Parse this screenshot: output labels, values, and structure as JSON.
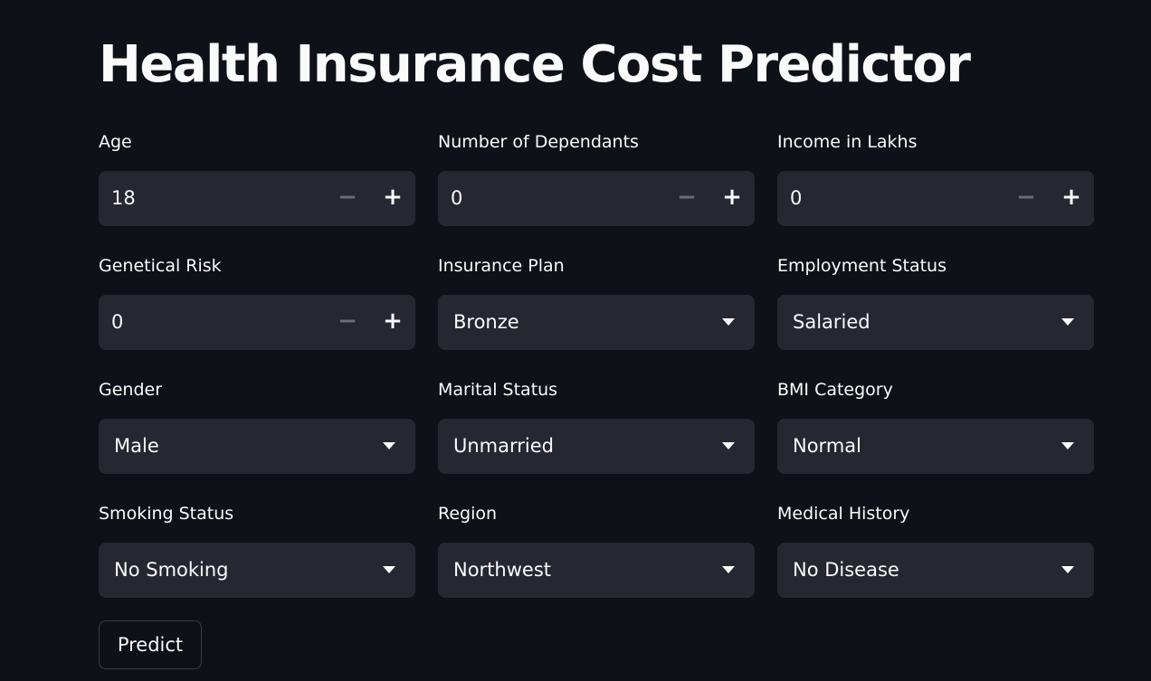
{
  "app": {
    "title": "Health Insurance Cost Predictor"
  },
  "fields": [
    {
      "label": "Age",
      "type": "number",
      "value": "18",
      "minus": "−",
      "plus": "+"
    },
    {
      "label": "Number of Dependants",
      "type": "number",
      "value": "0",
      "minus": "−",
      "plus": "+"
    },
    {
      "label": "Income in Lakhs",
      "type": "number",
      "value": "0",
      "minus": "−",
      "plus": "+"
    },
    {
      "label": "Genetical Risk",
      "type": "number",
      "value": "0",
      "minus": "−",
      "plus": "+"
    },
    {
      "label": "Insurance Plan",
      "type": "select",
      "value": "Bronze"
    },
    {
      "label": "Employment Status",
      "type": "select",
      "value": "Salaried"
    },
    {
      "label": "Gender",
      "type": "select",
      "value": "Male"
    },
    {
      "label": "Marital Status",
      "type": "select",
      "value": "Unmarried"
    },
    {
      "label": "BMI Category",
      "type": "select",
      "value": "Normal"
    },
    {
      "label": "Smoking Status",
      "type": "select",
      "value": "No Smoking"
    },
    {
      "label": "Region",
      "type": "select",
      "value": "Northwest"
    },
    {
      "label": "Medical History",
      "type": "select",
      "value": "No Disease"
    }
  ],
  "actions": {
    "predict_label": "Predict"
  },
  "colors": {
    "background": "#0e1117",
    "input_background": "#262730",
    "text": "#fafafa",
    "disabled_stepper": "#6b6d76"
  }
}
